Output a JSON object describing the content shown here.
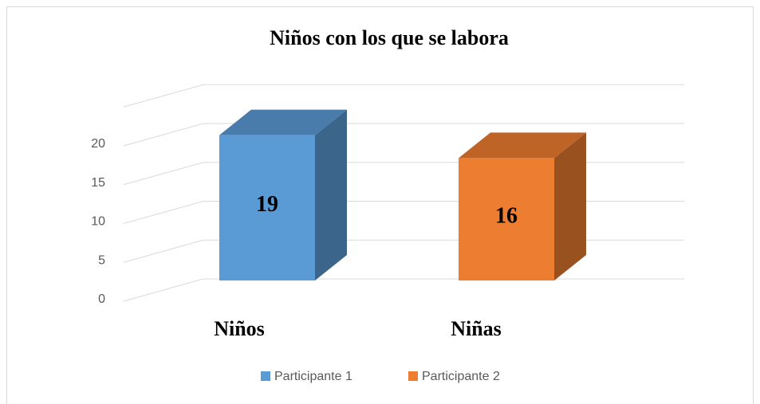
{
  "chart_data": {
    "type": "bar3d",
    "title": "Niños con los que se labora",
    "categories": [
      "Niños",
      "Niñas"
    ],
    "series": [
      {
        "name": "Participante 1",
        "color": "#5b9bd5",
        "values": [
          19,
          null
        ]
      },
      {
        "name": "Participante 2",
        "color": "#ed7d31",
        "values": [
          null,
          16
        ]
      }
    ],
    "ylim": [
      0,
      25
    ],
    "yticks": [
      0,
      5,
      10,
      15,
      20
    ],
    "grid": true,
    "legend": "bottom"
  }
}
